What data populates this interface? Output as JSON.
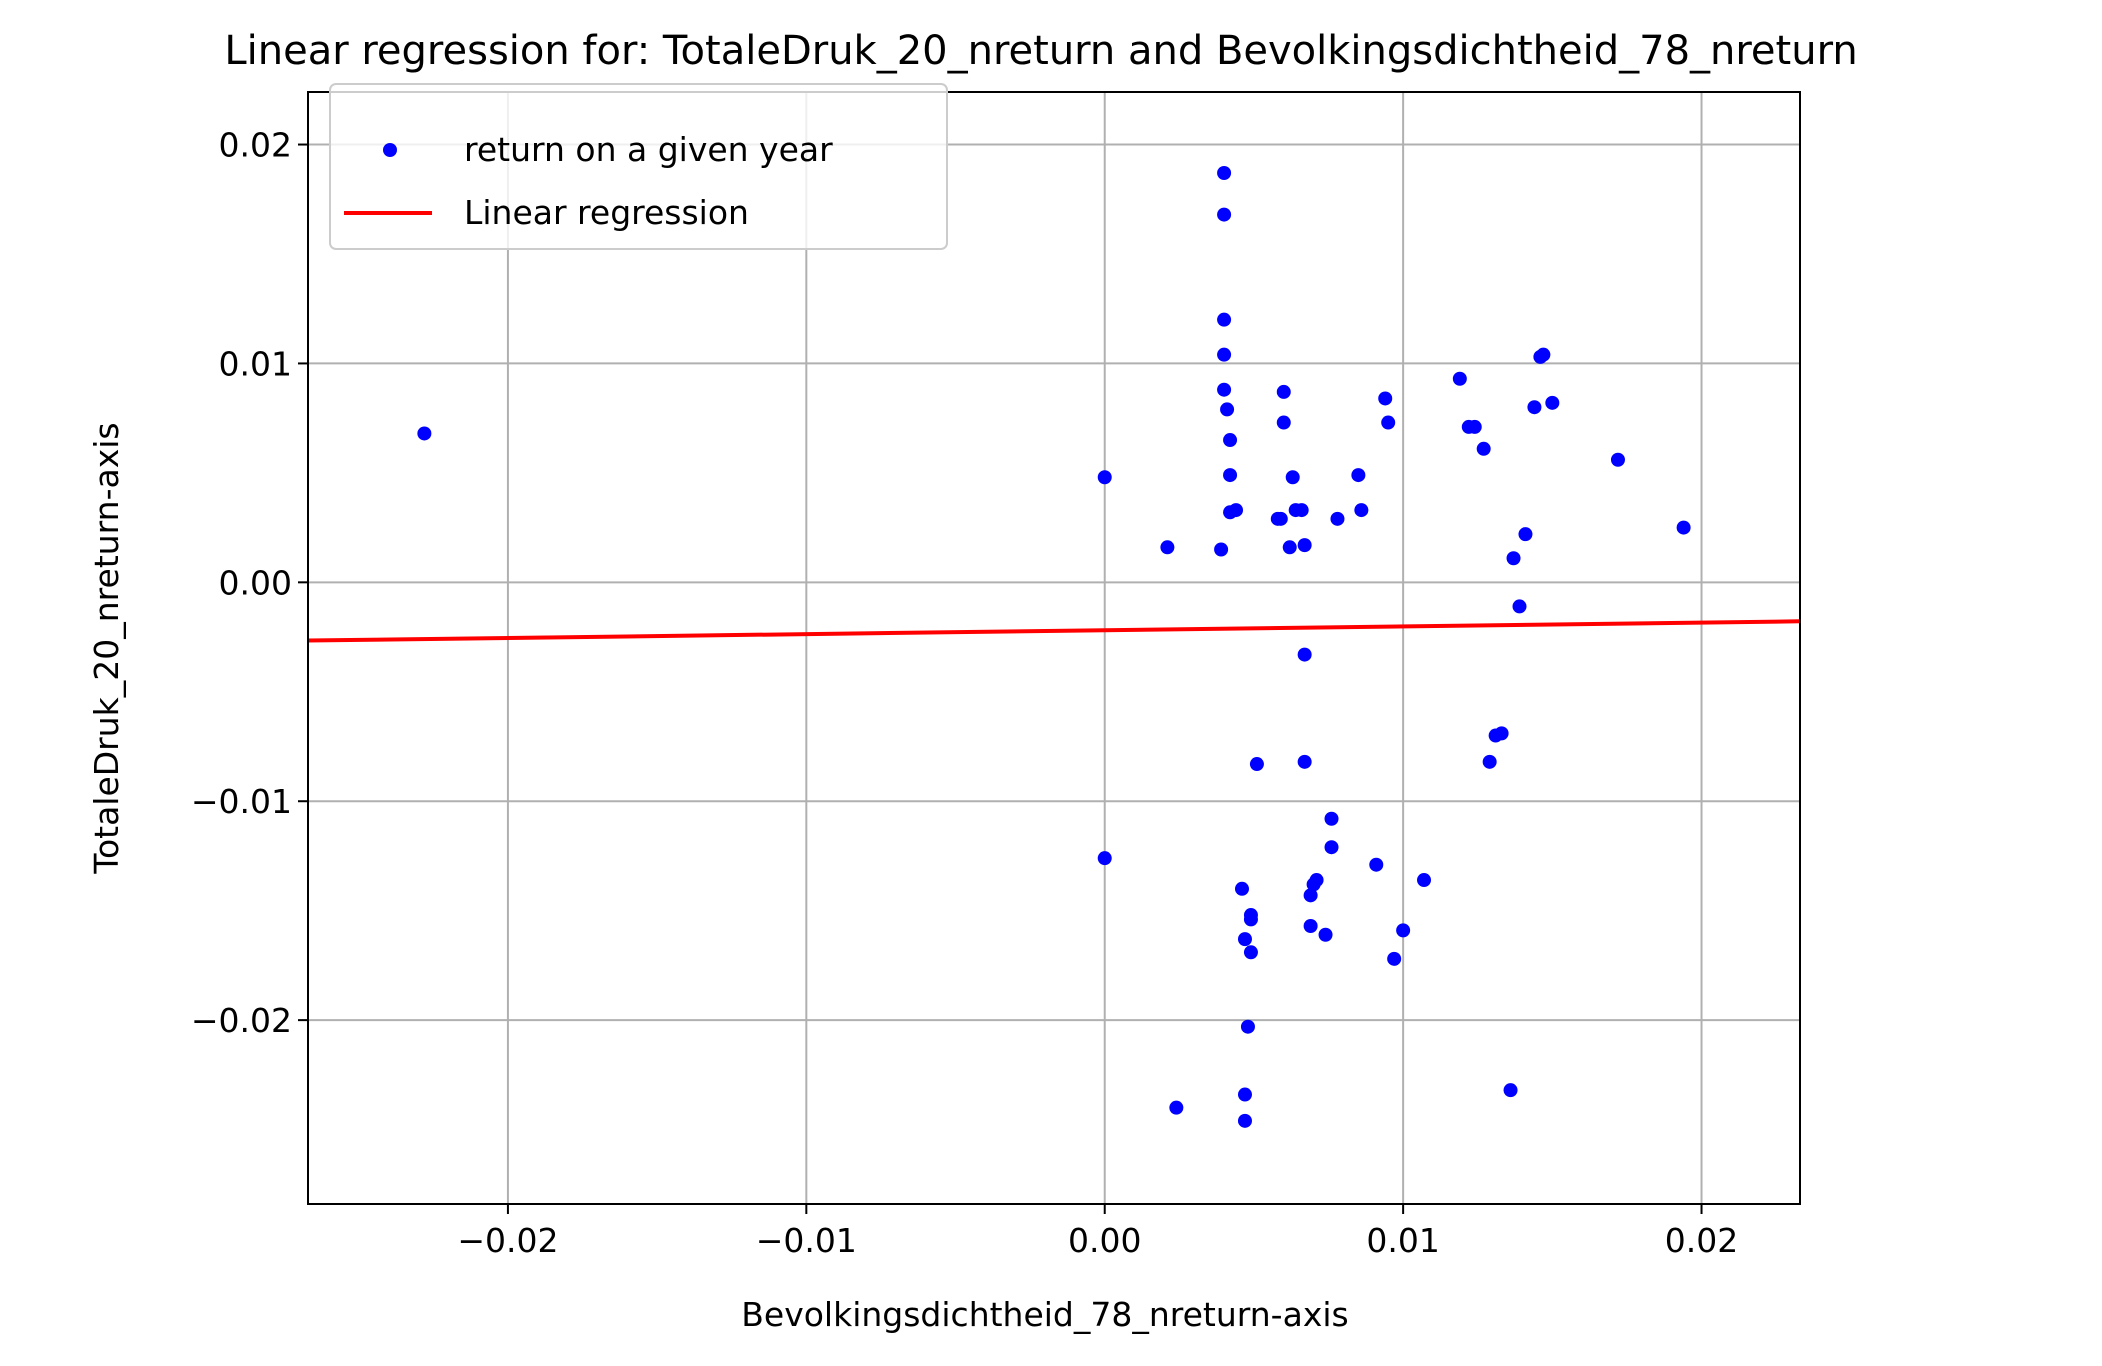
{
  "chart_data": {
    "type": "scatter",
    "title": "Linear regression for: TotaleDruk_20_nreturn and Bevolkingsdichtheid_78_nreturn",
    "xlabel": "Bevolkingsdichtheid_78_nreturn-axis",
    "ylabel": "TotaleDruk_20_nreturn-axis",
    "xlim": [
      -0.0267,
      0.0233
    ],
    "ylim": [
      -0.0284,
      0.0224
    ],
    "xticks": [
      -0.02,
      -0.01,
      0.0,
      0.01,
      0.02
    ],
    "xtick_labels": [
      "−0.02",
      "−0.01",
      "0.00",
      "0.01",
      "0.02"
    ],
    "yticks": [
      -0.02,
      -0.01,
      0.0,
      0.01,
      0.02
    ],
    "ytick_labels": [
      "−0.02",
      "−0.01",
      "0.00",
      "0.01",
      "0.02"
    ],
    "grid": true,
    "legend_position": "top-left",
    "series": [
      {
        "name": "return on a given year",
        "kind": "scatter",
        "color": "#0000ff",
        "points": [
          [
            -0.0228,
            0.0068
          ],
          [
            0.0,
            0.0048
          ],
          [
            0.0,
            -0.0126
          ],
          [
            0.0021,
            0.0016
          ],
          [
            0.0024,
            -0.024
          ],
          [
            0.0039,
            0.0015
          ],
          [
            0.004,
            0.0187
          ],
          [
            0.004,
            0.0168
          ],
          [
            0.004,
            0.012
          ],
          [
            0.004,
            0.0104
          ],
          [
            0.004,
            0.0088
          ],
          [
            0.0041,
            0.0079
          ],
          [
            0.0042,
            0.0065
          ],
          [
            0.0042,
            0.0049
          ],
          [
            0.0042,
            0.0032
          ],
          [
            0.0044,
            0.0033
          ],
          [
            0.0046,
            -0.014
          ],
          [
            0.0047,
            -0.0163
          ],
          [
            0.0047,
            -0.0234
          ],
          [
            0.0047,
            -0.0246
          ],
          [
            0.0048,
            -0.0203
          ],
          [
            0.0049,
            -0.0152
          ],
          [
            0.0049,
            -0.0154
          ],
          [
            0.0049,
            -0.0169
          ],
          [
            0.0051,
            -0.0083
          ],
          [
            0.0058,
            0.0029
          ],
          [
            0.0059,
            0.0029
          ],
          [
            0.006,
            0.0087
          ],
          [
            0.006,
            0.0073
          ],
          [
            0.0062,
            0.0016
          ],
          [
            0.0063,
            0.0048
          ],
          [
            0.0064,
            0.0033
          ],
          [
            0.0066,
            0.0033
          ],
          [
            0.0067,
            0.0017
          ],
          [
            0.0067,
            -0.0033
          ],
          [
            0.0067,
            -0.0082
          ],
          [
            0.0069,
            -0.0143
          ],
          [
            0.0069,
            -0.0157
          ],
          [
            0.007,
            -0.0138
          ],
          [
            0.0071,
            -0.0136
          ],
          [
            0.0074,
            -0.0161
          ],
          [
            0.0076,
            -0.0108
          ],
          [
            0.0076,
            -0.0121
          ],
          [
            0.0078,
            0.0029
          ],
          [
            0.0085,
            0.0049
          ],
          [
            0.0086,
            0.0033
          ],
          [
            0.0091,
            -0.0129
          ],
          [
            0.0094,
            0.0084
          ],
          [
            0.0095,
            0.0073
          ],
          [
            0.0097,
            -0.0172
          ],
          [
            0.01,
            -0.0159
          ],
          [
            0.0107,
            -0.0136
          ],
          [
            0.0119,
            0.0093
          ],
          [
            0.0122,
            0.0071
          ],
          [
            0.0124,
            0.0071
          ],
          [
            0.0127,
            0.0061
          ],
          [
            0.0129,
            -0.0082
          ],
          [
            0.0131,
            -0.007
          ],
          [
            0.0133,
            -0.0069
          ],
          [
            0.0136,
            -0.0232
          ],
          [
            0.0137,
            0.0011
          ],
          [
            0.0139,
            -0.0011
          ],
          [
            0.0141,
            0.0022
          ],
          [
            0.0144,
            0.008
          ],
          [
            0.0146,
            0.0103
          ],
          [
            0.0147,
            0.0104
          ],
          [
            0.015,
            0.0082
          ],
          [
            0.0172,
            0.0056
          ],
          [
            0.0194,
            0.0025
          ]
        ]
      },
      {
        "name": "Linear regression",
        "kind": "line",
        "color": "#ff0000",
        "points": [
          [
            -0.0267,
            -0.00266
          ],
          [
            0.0233,
            -0.00178
          ]
        ]
      }
    ]
  }
}
